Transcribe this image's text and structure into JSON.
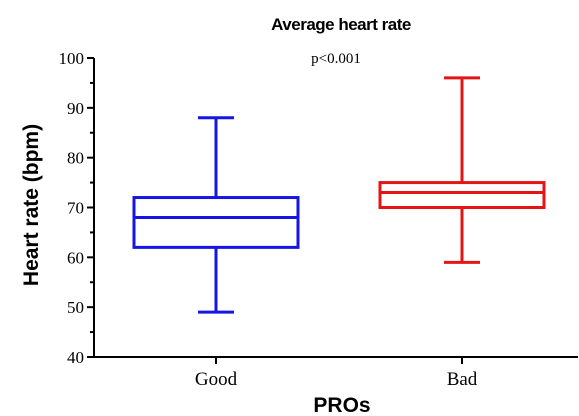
{
  "chart_data": {
    "type": "boxplot",
    "title": "Average heart rate",
    "annotation": "p<0.001",
    "xlabel": "PROs",
    "ylabel": "Heart rate (bpm)",
    "ylim": [
      40,
      100
    ],
    "yticks": [
      40,
      50,
      60,
      70,
      80,
      90,
      100
    ],
    "grid": false,
    "categories": [
      "Good",
      "Bad"
    ],
    "boxes": [
      {
        "category": "Good",
        "min": 49,
        "q1": 62,
        "median": 68,
        "q3": 72,
        "max": 88,
        "color": "#1515e6"
      },
      {
        "category": "Bad",
        "min": 59,
        "q1": 70,
        "median": 73,
        "q3": 75,
        "max": 96,
        "color": "#e61515"
      }
    ]
  }
}
